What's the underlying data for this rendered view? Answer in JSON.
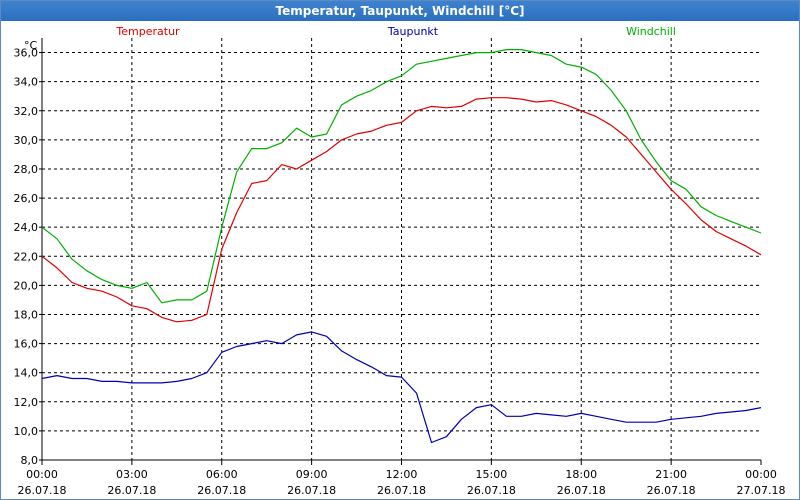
{
  "window": {
    "title": "Temperatur, Taupunkt, Windchill [°C]"
  },
  "colors": {
    "temperatur": "#e00000",
    "taupunkt": "#0000b0",
    "windchill": "#00b000",
    "grid": "#000000"
  },
  "chart_data": {
    "type": "line",
    "title": "Temperatur, Taupunkt, Windchill [°C]",
    "ylabel": "°C",
    "xlabel": "",
    "ylim": [
      8,
      37
    ],
    "xlim_hours": [
      0,
      24
    ],
    "y_ticks": [
      "8,0",
      "10,0",
      "12,0",
      "14,0",
      "16,0",
      "18,0",
      "20,0",
      "22,0",
      "24,0",
      "26,0",
      "28,0",
      "30,0",
      "32,0",
      "34,0",
      "36,0"
    ],
    "y_tick_values": [
      8,
      10,
      12,
      14,
      16,
      18,
      20,
      22,
      24,
      26,
      28,
      30,
      32,
      34,
      36
    ],
    "x_ticks": [
      {
        "h": 0,
        "time": "00:00",
        "date": "26.07.18"
      },
      {
        "h": 3,
        "time": "03:00",
        "date": "26.07.18"
      },
      {
        "h": 6,
        "time": "06:00",
        "date": "26.07.18"
      },
      {
        "h": 9,
        "time": "09:00",
        "date": "26.07.18"
      },
      {
        "h": 12,
        "time": "12:00",
        "date": "26.07.18"
      },
      {
        "h": 15,
        "time": "15:00",
        "date": "26.07.18"
      },
      {
        "h": 18,
        "time": "18:00",
        "date": "26.07.18"
      },
      {
        "h": 21,
        "time": "21:00",
        "date": "26.07.18"
      },
      {
        "h": 24,
        "time": "00:00",
        "date": "27.07.18"
      }
    ],
    "legend": [
      "Temperatur",
      "Taupunkt",
      "Windchill"
    ],
    "x_hours": [
      0,
      0.5,
      1,
      1.5,
      2,
      2.5,
      3,
      3.5,
      4,
      4.5,
      5,
      5.5,
      6,
      6.5,
      7,
      7.5,
      8,
      8.5,
      9,
      9.5,
      10,
      10.5,
      11,
      11.5,
      12,
      12.5,
      13,
      13.5,
      14,
      14.5,
      15,
      15.5,
      16,
      16.5,
      17,
      17.5,
      18,
      18.5,
      19,
      19.5,
      20,
      20.5,
      21,
      21.5,
      22,
      22.5,
      23,
      23.5,
      24
    ],
    "series": [
      {
        "name": "Temperatur",
        "color": "#e00000",
        "values": [
          22.0,
          21.2,
          20.2,
          19.8,
          19.6,
          19.2,
          18.6,
          18.4,
          17.8,
          17.5,
          17.6,
          18.0,
          22.5,
          25.0,
          27.0,
          27.2,
          28.3,
          28.0,
          28.6,
          29.2,
          30.0,
          30.4,
          30.6,
          31.0,
          31.2,
          32.0,
          32.3,
          32.2,
          32.3,
          32.8,
          32.9,
          32.9,
          32.8,
          32.6,
          32.7,
          32.4,
          32.0,
          31.6,
          31.0,
          30.2,
          29.0,
          27.8,
          26.6,
          25.6,
          24.5,
          23.7,
          23.2,
          22.7,
          22.1
        ]
      },
      {
        "name": "Taupunkt",
        "color": "#0000b0",
        "values": [
          13.6,
          13.8,
          13.6,
          13.6,
          13.4,
          13.4,
          13.3,
          13.3,
          13.3,
          13.4,
          13.6,
          14.0,
          15.4,
          15.8,
          16.0,
          16.2,
          16.0,
          16.6,
          16.8,
          16.5,
          15.5,
          14.9,
          14.4,
          13.8,
          13.7,
          12.6,
          9.2,
          9.6,
          10.8,
          11.6,
          11.8,
          11.0,
          11.0,
          11.2,
          11.1,
          11.0,
          11.2,
          11.0,
          10.8,
          10.6,
          10.6,
          10.6,
          10.8,
          10.9,
          11.0,
          11.2,
          11.3,
          11.4,
          11.6
        ]
      },
      {
        "name": "Windchill",
        "color": "#00b000",
        "values": [
          24.0,
          23.2,
          21.8,
          21.0,
          20.4,
          20.0,
          19.8,
          20.2,
          18.8,
          19.0,
          19.0,
          19.6,
          24.0,
          27.8,
          29.4,
          29.4,
          29.8,
          30.8,
          30.2,
          30.4,
          32.4,
          33.0,
          33.4,
          34.0,
          34.4,
          35.2,
          35.4,
          35.6,
          35.8,
          36.0,
          36.0,
          36.2,
          36.2,
          36.0,
          35.8,
          35.2,
          35.0,
          34.5,
          33.4,
          32.0,
          30.0,
          28.5,
          27.2,
          26.6,
          25.4,
          24.8,
          24.4,
          24.0,
          23.6
        ]
      }
    ]
  }
}
